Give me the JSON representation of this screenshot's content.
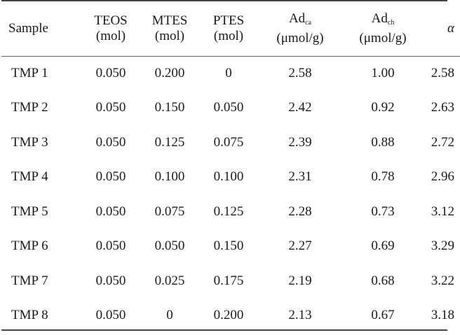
{
  "table": {
    "headers": {
      "sample": "Sample",
      "teos": [
        "TEOS",
        "(mol)"
      ],
      "mtes": [
        "MTES",
        "(mol)"
      ],
      "ptes": [
        "PTES",
        "(mol)"
      ],
      "adca": {
        "base": "Ad",
        "sub": "ca",
        "unit": "(μmol/g)"
      },
      "adch": {
        "base": "Ad",
        "sub": "ch",
        "unit": "(μmol/g)"
      },
      "alpha": "α"
    },
    "rows": [
      {
        "sample": "TMP 1",
        "teos": "0.050",
        "mtes": "0.200",
        "ptes": "0",
        "adca": "2.58",
        "adch": "1.00",
        "alpha": "2.58"
      },
      {
        "sample": "TMP 2",
        "teos": "0.050",
        "mtes": "0.150",
        "ptes": "0.050",
        "adca": "2.42",
        "adch": "0.92",
        "alpha": "2.63"
      },
      {
        "sample": "TMP 3",
        "teos": "0.050",
        "mtes": "0.125",
        "ptes": "0.075",
        "adca": "2.39",
        "adch": "0.88",
        "alpha": "2.72"
      },
      {
        "sample": "TMP 4",
        "teos": "0.050",
        "mtes": "0.100",
        "ptes": "0.100",
        "adca": "2.31",
        "adch": "0.78",
        "alpha": "2.96"
      },
      {
        "sample": "TMP 5",
        "teos": "0.050",
        "mtes": "0.075",
        "ptes": "0.125",
        "adca": "2.28",
        "adch": "0.73",
        "alpha": "3.12"
      },
      {
        "sample": "TMP 6",
        "teos": "0.050",
        "mtes": "0.050",
        "ptes": "0.150",
        "adca": "2.27",
        "adch": "0.69",
        "alpha": "3.29"
      },
      {
        "sample": "TMP 7",
        "teos": "0.050",
        "mtes": "0.025",
        "ptes": "0.175",
        "adca": "2.19",
        "adch": "0.68",
        "alpha": "3.22"
      },
      {
        "sample": "TMP 8",
        "teos": "0.050",
        "mtes": "0",
        "ptes": "0.200",
        "adca": "2.13",
        "adch": "0.67",
        "alpha": "3.18"
      }
    ]
  }
}
